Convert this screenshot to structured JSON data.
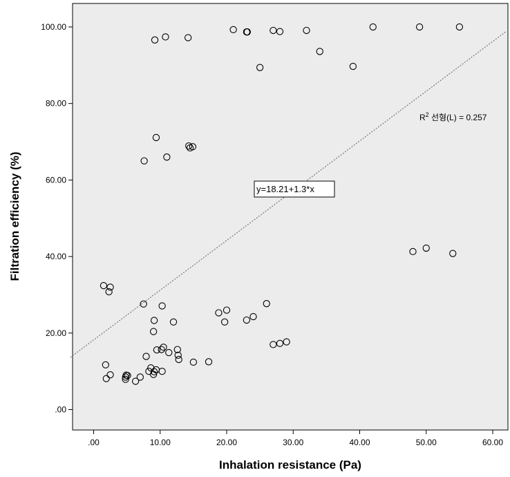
{
  "chart_data": {
    "type": "scatter",
    "xlabel": "Inhalation resistance (Pa)",
    "ylabel": "Filtration efficiency (%)",
    "xlim": [
      -3.5,
      62
    ],
    "ylim": [
      -8,
      105
    ],
    "x_ticks": [
      0,
      10,
      20,
      30,
      40,
      50,
      60
    ],
    "x_tick_labels": [
      ".00",
      "10.00",
      "20.00",
      "30.00",
      "40.00",
      "50.00",
      "60.00"
    ],
    "y_ticks": [
      0,
      20,
      40,
      60,
      80,
      100
    ],
    "y_tick_labels": [
      ".00",
      "20.00",
      "40.00",
      "60.00",
      "80.00",
      "100.00"
    ],
    "grid": false,
    "background_color": "#ececec",
    "marker_color": "#000000",
    "fit_line": {
      "intercept": 18.21,
      "slope": 1.3,
      "style": "dotted",
      "color": "#777777",
      "equation_label": "y=18.21+1.3*x",
      "r2_label": {
        "prefix": "R",
        "superscript": "2",
        "suffix": " 선형(L) = 0.257"
      }
    },
    "points": [
      {
        "x": 9.2,
        "y": 96.6
      },
      {
        "x": 10.8,
        "y": 97.4
      },
      {
        "x": 14.2,
        "y": 97.2
      },
      {
        "x": 21.0,
        "y": 99.3
      },
      {
        "x": 23.0,
        "y": 98.7
      },
      {
        "x": 23.1,
        "y": 98.7
      },
      {
        "x": 27.0,
        "y": 99.1
      },
      {
        "x": 28.0,
        "y": 98.8
      },
      {
        "x": 32.0,
        "y": 99.1
      },
      {
        "x": 42.0,
        "y": 100.0
      },
      {
        "x": 49.0,
        "y": 100.0
      },
      {
        "x": 55.0,
        "y": 100.0
      },
      {
        "x": 34.0,
        "y": 93.6
      },
      {
        "x": 25.0,
        "y": 89.4
      },
      {
        "x": 39.0,
        "y": 89.7
      },
      {
        "x": 9.4,
        "y": 71.1
      },
      {
        "x": 14.3,
        "y": 68.9
      },
      {
        "x": 14.5,
        "y": 68.4
      },
      {
        "x": 14.9,
        "y": 68.7
      },
      {
        "x": 7.6,
        "y": 65.0
      },
      {
        "x": 11.0,
        "y": 66.0
      },
      {
        "x": 48.0,
        "y": 41.3
      },
      {
        "x": 50.0,
        "y": 42.2
      },
      {
        "x": 54.0,
        "y": 40.8
      },
      {
        "x": 1.5,
        "y": 32.4
      },
      {
        "x": 2.5,
        "y": 32.0
      },
      {
        "x": 2.3,
        "y": 30.8
      },
      {
        "x": 7.5,
        "y": 27.6
      },
      {
        "x": 10.3,
        "y": 27.1
      },
      {
        "x": 26.0,
        "y": 27.7
      },
      {
        "x": 18.8,
        "y": 25.3
      },
      {
        "x": 20.0,
        "y": 26.0
      },
      {
        "x": 24.0,
        "y": 24.3
      },
      {
        "x": 23.0,
        "y": 23.4
      },
      {
        "x": 19.7,
        "y": 22.9
      },
      {
        "x": 12.0,
        "y": 22.9
      },
      {
        "x": 9.1,
        "y": 23.3
      },
      {
        "x": 9.0,
        "y": 20.4
      },
      {
        "x": 27.0,
        "y": 17.0
      },
      {
        "x": 28.0,
        "y": 17.3
      },
      {
        "x": 29.0,
        "y": 17.7
      },
      {
        "x": 7.9,
        "y": 13.9
      },
      {
        "x": 9.5,
        "y": 15.6
      },
      {
        "x": 10.2,
        "y": 15.7
      },
      {
        "x": 10.5,
        "y": 16.3
      },
      {
        "x": 11.3,
        "y": 14.9
      },
      {
        "x": 12.6,
        "y": 15.7
      },
      {
        "x": 12.7,
        "y": 14.2
      },
      {
        "x": 12.8,
        "y": 13.1
      },
      {
        "x": 15.0,
        "y": 12.4
      },
      {
        "x": 17.3,
        "y": 12.5
      },
      {
        "x": 1.8,
        "y": 11.7
      },
      {
        "x": 2.5,
        "y": 9.1
      },
      {
        "x": 1.9,
        "y": 8.1
      },
      {
        "x": 4.8,
        "y": 8.5
      },
      {
        "x": 4.9,
        "y": 9.0
      },
      {
        "x": 5.1,
        "y": 8.9
      },
      {
        "x": 4.8,
        "y": 7.9
      },
      {
        "x": 6.3,
        "y": 7.4
      },
      {
        "x": 7.0,
        "y": 8.5
      },
      {
        "x": 8.3,
        "y": 10.0
      },
      {
        "x": 8.6,
        "y": 10.9
      },
      {
        "x": 9.0,
        "y": 9.2
      },
      {
        "x": 9.1,
        "y": 9.9
      },
      {
        "x": 9.4,
        "y": 10.4
      },
      {
        "x": 10.3,
        "y": 10.0
      }
    ]
  }
}
